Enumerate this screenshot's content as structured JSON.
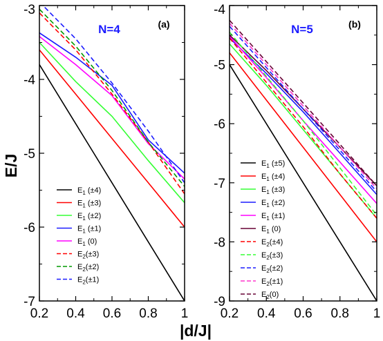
{
  "y_axis_title": "E/J",
  "x_axis_title": "|d/J|",
  "colors": {
    "black": "#000000",
    "red": "#ff0000",
    "green": "#33ff33",
    "blue": "#1a1aff",
    "magenta": "#ff00ff",
    "maroon": "#660033",
    "darkgreen": "#009900",
    "pink": "#ff33cc"
  },
  "chart_data": [
    {
      "type": "line",
      "panel": "(a)",
      "annotation": "N=4",
      "xlim": [
        0.2,
        1.0
      ],
      "ylim": [
        -7,
        -3
      ],
      "xticks": [
        "0.2",
        "0.4",
        "0.6",
        "0.8",
        "1"
      ],
      "yticks": [
        "-7",
        "-6",
        "-5",
        "-4",
        "-3"
      ],
      "legend_position": "lower-left",
      "x": [
        0.2,
        0.4,
        0.6,
        0.8,
        1.0
      ],
      "series": [
        {
          "label_main": "E",
          "label_sub": "1",
          "label_tail": " (±4)",
          "color": "#000000",
          "dash": false,
          "values": [
            -3.8,
            -4.6,
            -5.4,
            -6.2,
            -7.0
          ]
        },
        {
          "label_main": "E",
          "label_sub": "1",
          "label_tail": " (±3)",
          "color": "#ff0000",
          "dash": false,
          "values": [
            -3.6,
            -4.2,
            -4.8,
            -5.4,
            -6.0
          ]
        },
        {
          "label_main": "E",
          "label_sub": "1",
          "label_tail": " (±2)",
          "color": "#33ff33",
          "dash": false,
          "values": [
            -3.5,
            -4.03,
            -4.5,
            -5.1,
            -5.67
          ]
        },
        {
          "label_main": "E",
          "label_sub": "1",
          "label_tail": " (±1)",
          "color": "#1a1aff",
          "dash": false,
          "values": [
            -3.37,
            -3.7,
            -4.08,
            -4.82,
            -5.27
          ]
        },
        {
          "label_main": "E",
          "label_sub": "1",
          "label_tail": " (0)",
          "color": "#ff00ff",
          "dash": false,
          "values": [
            -3.42,
            -3.8,
            -4.22,
            -4.87,
            -5.35
          ]
        },
        {
          "label_main": "E",
          "label_sub": "2",
          "label_tail": "(±3)",
          "color": "#ff0000",
          "dash": true,
          "values": [
            -3.1,
            -3.6,
            -4.2,
            -4.85,
            -5.55
          ]
        },
        {
          "label_main": "E",
          "label_sub": "2",
          "label_tail": "(±2)",
          "color": "#009900",
          "dash": true,
          "values": [
            -3.05,
            -3.55,
            -4.15,
            -4.85,
            -5.45
          ]
        },
        {
          "label_main": "E",
          "label_sub": "2",
          "label_tail": "(±1)",
          "color": "#1a1aff",
          "dash": true,
          "values": [
            -2.95,
            -3.45,
            -4.05,
            -4.7,
            -5.4
          ]
        }
      ]
    },
    {
      "type": "line",
      "panel": "(b)",
      "annotation": "N=5",
      "xlim": [
        0.2,
        1.0
      ],
      "ylim": [
        -9,
        -4
      ],
      "xticks": [
        "0.2",
        "0.4",
        "0.6",
        "0.8",
        "1"
      ],
      "yticks": [
        "-9",
        "-8",
        "-7",
        "-6",
        "-5",
        "-4"
      ],
      "legend_position": "lower-left",
      "x": [
        0.2,
        0.4,
        0.6,
        0.8,
        1.0
      ],
      "series": [
        {
          "label_main": "E",
          "label_sub": "1",
          "label_tail": " (±5)",
          "color": "#000000",
          "dash": false,
          "values": [
            -5.0,
            -6.0,
            -7.0,
            -8.0,
            -9.0
          ]
        },
        {
          "label_main": "E",
          "label_sub": "1",
          "label_tail": " (±4)",
          "color": "#ff0000",
          "dash": false,
          "values": [
            -4.8,
            -5.6,
            -6.4,
            -7.2,
            -8.0
          ]
        },
        {
          "label_main": "E",
          "label_sub": "1",
          "label_tail": " (±3)",
          "color": "#33ff33",
          "dash": false,
          "values": [
            -4.65,
            -5.35,
            -6.1,
            -6.85,
            -7.6
          ]
        },
        {
          "label_main": "E",
          "label_sub": "1",
          "label_tail": " (±2)",
          "color": "#1a1aff",
          "dash": false,
          "values": [
            -4.55,
            -5.15,
            -5.8,
            -6.5,
            -7.2
          ]
        },
        {
          "label_main": "E",
          "label_sub": "1",
          "label_tail": " (±1)",
          "color": "#ff00ff",
          "dash": false,
          "values": [
            -4.52,
            -5.22,
            -5.95,
            -6.65,
            -7.35
          ]
        },
        {
          "label_main": "E",
          "label_sub": "1",
          "label_tail": " (0)",
          "color": "#660033",
          "dash": false,
          "values": [
            -4.5,
            -5.1,
            -5.75,
            -6.4,
            -7.05
          ]
        },
        {
          "label_main": "E",
          "label_sub": "2",
          "label_tail": "(±4)",
          "color": "#ff0000",
          "dash": true,
          "values": [
            -4.55,
            -5.3,
            -6.05,
            -6.85,
            -7.6
          ]
        },
        {
          "label_main": "E",
          "label_sub": "2",
          "label_tail": "(±3)",
          "color": "#33ff33",
          "dash": true,
          "values": [
            -4.45,
            -5.2,
            -5.95,
            -6.75,
            -7.55
          ]
        },
        {
          "label_main": "E",
          "label_sub": "2",
          "label_tail": "(±2)",
          "color": "#1a1aff",
          "dash": true,
          "values": [
            -4.35,
            -5.05,
            -5.75,
            -6.45,
            -7.15
          ]
        },
        {
          "label_main": "E",
          "label_sub": "2",
          "label_tail": "(±1)",
          "color": "#ff33cc",
          "dash": true,
          "values": [
            -4.3,
            -5.0,
            -5.7,
            -6.4,
            -7.1
          ]
        },
        {
          "label_main": "E",
          "label_sub": "2",
          "label_tail": "(0)",
          "color": "#660033",
          "dash": true,
          "values": [
            -4.25,
            -4.95,
            -5.65,
            -6.35,
            -7.05
          ]
        }
      ]
    }
  ]
}
